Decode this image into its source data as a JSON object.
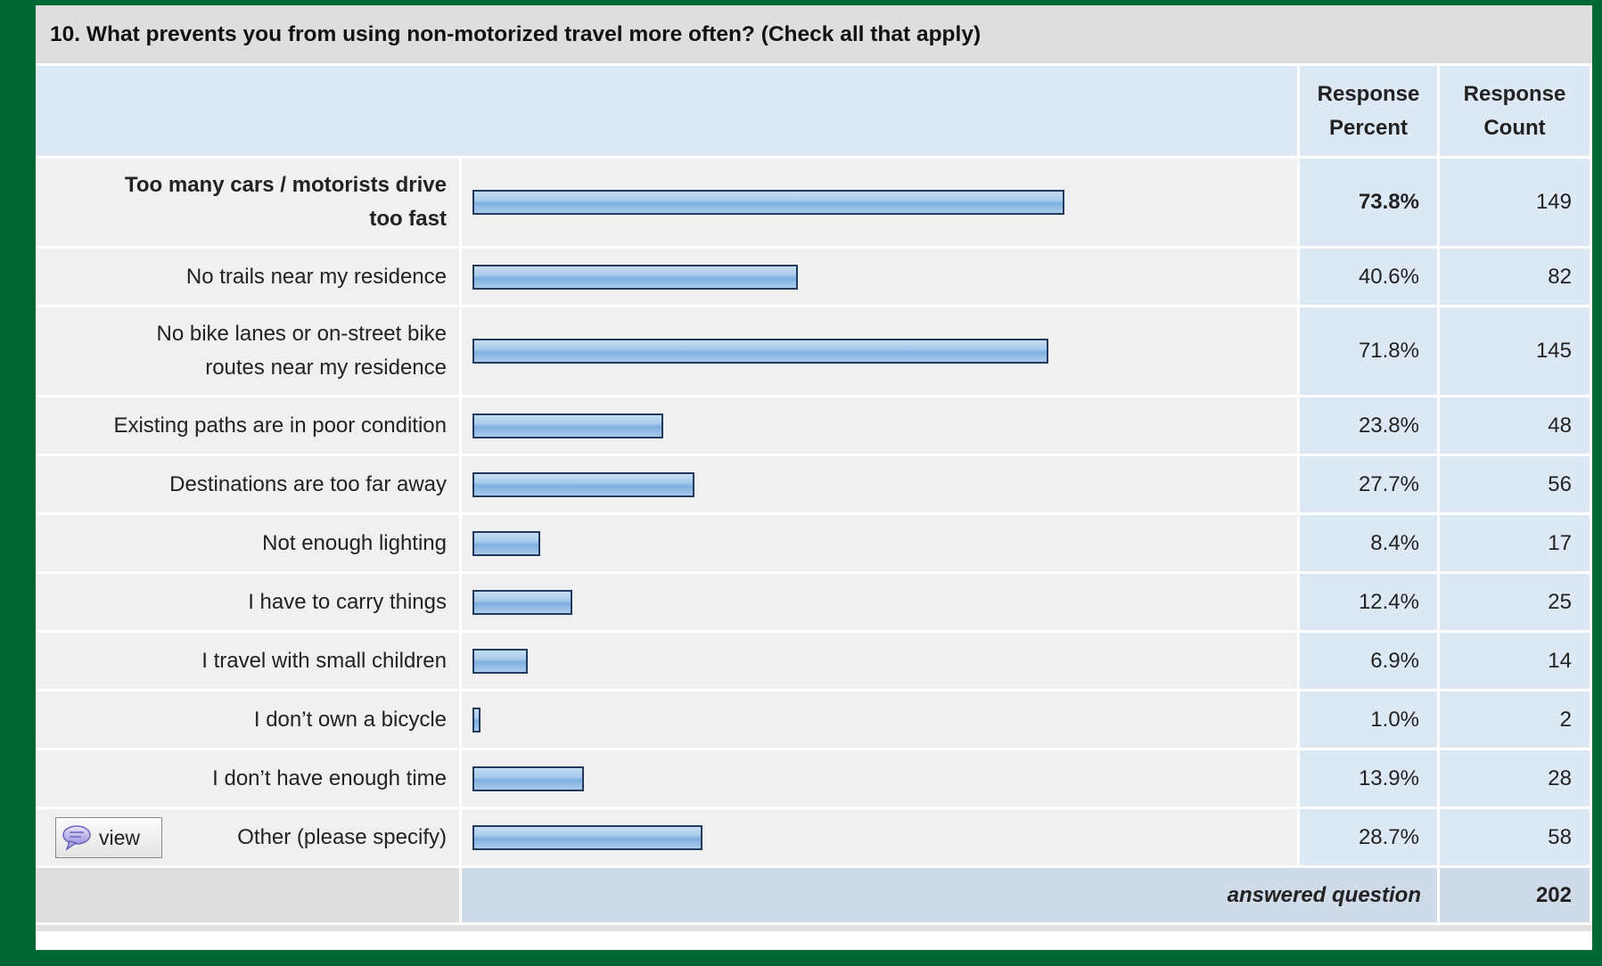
{
  "question": {
    "title": "10. What prevents you from using non-motorized travel more often? (Check all that apply)"
  },
  "header": {
    "percent_line1": "Response",
    "percent_line2": "Percent",
    "count_line1": "Response",
    "count_line2": "Count"
  },
  "chart_data": {
    "type": "bar",
    "orientation": "horizontal",
    "scale_max_percent": 100,
    "categories": [
      "Too many cars / motorists drive too fast",
      "No trails near my residence",
      "No bike lanes or on-street bike routes near my residence",
      "Existing paths are in poor condition",
      "Destinations are too far away",
      "Not enough lighting",
      "I have to carry things",
      "I travel with small children",
      "I don't own a bicycle",
      "I don't have enough time",
      "Other (please specify)"
    ],
    "values": [
      73.8,
      40.6,
      71.8,
      23.8,
      27.7,
      8.4,
      12.4,
      6.9,
      1.0,
      13.9,
      28.7
    ]
  },
  "rows": [
    {
      "label_line1": "Too many cars / motorists drive",
      "label_line2": "too fast",
      "percent": "73.8%",
      "count": "149"
    },
    {
      "label_line1": "No trails near my residence",
      "label_line2": "",
      "percent": "40.6%",
      "count": "82"
    },
    {
      "label_line1": "No bike lanes or on-street bike",
      "label_line2": "routes near my residence",
      "percent": "71.8%",
      "count": "145"
    },
    {
      "label_line1": "Existing paths are in poor condition",
      "label_line2": "",
      "percent": "23.8%",
      "count": "48"
    },
    {
      "label_line1": "Destinations are too far away",
      "label_line2": "",
      "percent": "27.7%",
      "count": "56"
    },
    {
      "label_line1": "Not enough lighting",
      "label_line2": "",
      "percent": "8.4%",
      "count": "17"
    },
    {
      "label_line1": "I have to carry things",
      "label_line2": "",
      "percent": "12.4%",
      "count": "25"
    },
    {
      "label_line1": "I travel with small children",
      "label_line2": "",
      "percent": "6.9%",
      "count": "14"
    },
    {
      "label_line1": "I don’t own a bicycle",
      "label_line2": "",
      "percent": "1.0%",
      "count": "2"
    },
    {
      "label_line1": "I don’t have enough time",
      "label_line2": "",
      "percent": "13.9%",
      "count": "28"
    },
    {
      "label_line1": "Other (please specify)",
      "label_line2": "",
      "percent": "28.7%",
      "count": "58"
    }
  ],
  "view_button": {
    "label": "view",
    "icon": "speech-bubble-icon"
  },
  "footer": {
    "answered_label": "answered question",
    "answered_count": "202"
  },
  "colors": {
    "page_background": "#006835",
    "bar_fill": "#a8cbec",
    "bar_border": "#223a5c",
    "label_background": "#f0f0f0",
    "value_background": "#dde8f5"
  }
}
